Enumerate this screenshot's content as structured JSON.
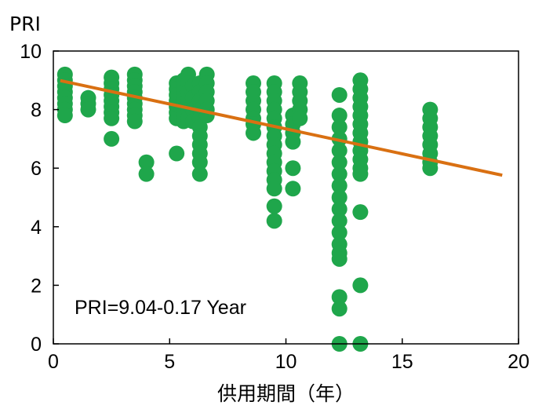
{
  "chart_data": {
    "type": "scatter",
    "title": "",
    "xlabel": "供用期間（年）",
    "ylabel": "PRI",
    "xlim": [
      0,
      20
    ],
    "ylim": [
      0,
      10
    ],
    "xticks": [
      "0",
      "5",
      "10",
      "15",
      "20"
    ],
    "yticks": [
      "0",
      "2",
      "4",
      "6",
      "8",
      "10"
    ],
    "grid": false,
    "legend": "none",
    "colors": {
      "points": "#1fa64b",
      "trendline": "#d97012"
    },
    "annotation": "PRI=9.04-0.17 Year",
    "trendline": {
      "intercept": 9.04,
      "slope": -0.17,
      "x_range": [
        0.3,
        19.3
      ]
    },
    "points": [
      {
        "x": 0.5,
        "y": 9.2
      },
      {
        "x": 0.5,
        "y": 9.0
      },
      {
        "x": 0.5,
        "y": 8.8
      },
      {
        "x": 0.5,
        "y": 8.6
      },
      {
        "x": 0.5,
        "y": 8.4
      },
      {
        "x": 0.5,
        "y": 8.2
      },
      {
        "x": 0.5,
        "y": 8.0
      },
      {
        "x": 0.5,
        "y": 7.8
      },
      {
        "x": 1.5,
        "y": 8.4
      },
      {
        "x": 1.5,
        "y": 8.2
      },
      {
        "x": 1.5,
        "y": 8.0
      },
      {
        "x": 2.5,
        "y": 9.1
      },
      {
        "x": 2.5,
        "y": 8.9
      },
      {
        "x": 2.5,
        "y": 8.7
      },
      {
        "x": 2.5,
        "y": 8.5
      },
      {
        "x": 2.5,
        "y": 8.3
      },
      {
        "x": 2.5,
        "y": 8.1
      },
      {
        "x": 2.5,
        "y": 7.9
      },
      {
        "x": 2.5,
        "y": 7.7
      },
      {
        "x": 2.5,
        "y": 7.0
      },
      {
        "x": 3.5,
        "y": 9.2
      },
      {
        "x": 3.5,
        "y": 9.0
      },
      {
        "x": 3.5,
        "y": 8.8
      },
      {
        "x": 3.5,
        "y": 8.6
      },
      {
        "x": 3.5,
        "y": 8.4
      },
      {
        "x": 3.5,
        "y": 8.2
      },
      {
        "x": 3.5,
        "y": 8.0
      },
      {
        "x": 3.5,
        "y": 7.8
      },
      {
        "x": 3.5,
        "y": 7.6
      },
      {
        "x": 4.0,
        "y": 6.2
      },
      {
        "x": 4.0,
        "y": 5.8
      },
      {
        "x": 5.3,
        "y": 8.9
      },
      {
        "x": 5.3,
        "y": 8.7
      },
      {
        "x": 5.3,
        "y": 8.5
      },
      {
        "x": 5.3,
        "y": 8.3
      },
      {
        "x": 5.3,
        "y": 8.1
      },
      {
        "x": 5.3,
        "y": 7.9
      },
      {
        "x": 5.3,
        "y": 7.7
      },
      {
        "x": 5.3,
        "y": 6.5
      },
      {
        "x": 5.6,
        "y": 9.0
      },
      {
        "x": 5.6,
        "y": 8.8
      },
      {
        "x": 5.6,
        "y": 8.6
      },
      {
        "x": 5.6,
        "y": 8.4
      },
      {
        "x": 5.6,
        "y": 8.2
      },
      {
        "x": 5.6,
        "y": 8.0
      },
      {
        "x": 5.6,
        "y": 7.8
      },
      {
        "x": 5.6,
        "y": 7.6
      },
      {
        "x": 5.8,
        "y": 9.2
      },
      {
        "x": 5.8,
        "y": 8.9
      },
      {
        "x": 5.8,
        "y": 8.6
      },
      {
        "x": 5.8,
        "y": 8.3
      },
      {
        "x": 5.8,
        "y": 8.0
      },
      {
        "x": 5.8,
        "y": 7.7
      },
      {
        "x": 6.0,
        "y": 8.8
      },
      {
        "x": 6.0,
        "y": 8.4
      },
      {
        "x": 6.0,
        "y": 8.0
      },
      {
        "x": 6.0,
        "y": 7.6
      },
      {
        "x": 6.3,
        "y": 8.9
      },
      {
        "x": 6.3,
        "y": 8.6
      },
      {
        "x": 6.3,
        "y": 8.3
      },
      {
        "x": 6.3,
        "y": 8.0
      },
      {
        "x": 6.3,
        "y": 7.7
      },
      {
        "x": 6.3,
        "y": 7.4
      },
      {
        "x": 6.3,
        "y": 7.1
      },
      {
        "x": 6.3,
        "y": 6.8
      },
      {
        "x": 6.3,
        "y": 6.5
      },
      {
        "x": 6.3,
        "y": 6.2
      },
      {
        "x": 6.3,
        "y": 5.8
      },
      {
        "x": 6.6,
        "y": 9.2
      },
      {
        "x": 6.6,
        "y": 8.9
      },
      {
        "x": 6.6,
        "y": 8.6
      },
      {
        "x": 6.6,
        "y": 8.3
      },
      {
        "x": 6.6,
        "y": 8.0
      },
      {
        "x": 6.6,
        "y": 7.8
      },
      {
        "x": 8.6,
        "y": 8.9
      },
      {
        "x": 8.6,
        "y": 8.6
      },
      {
        "x": 8.6,
        "y": 8.3
      },
      {
        "x": 8.6,
        "y": 8.0
      },
      {
        "x": 8.6,
        "y": 7.7
      },
      {
        "x": 8.6,
        "y": 7.5
      },
      {
        "x": 8.6,
        "y": 7.2
      },
      {
        "x": 9.5,
        "y": 8.9
      },
      {
        "x": 9.5,
        "y": 8.6
      },
      {
        "x": 9.5,
        "y": 8.3
      },
      {
        "x": 9.5,
        "y": 8.0
      },
      {
        "x": 9.5,
        "y": 7.7
      },
      {
        "x": 9.5,
        "y": 7.4
      },
      {
        "x": 9.5,
        "y": 7.1
      },
      {
        "x": 9.5,
        "y": 6.8
      },
      {
        "x": 9.5,
        "y": 6.5
      },
      {
        "x": 9.5,
        "y": 6.2
      },
      {
        "x": 9.5,
        "y": 5.9
      },
      {
        "x": 9.5,
        "y": 5.6
      },
      {
        "x": 9.5,
        "y": 5.3
      },
      {
        "x": 9.5,
        "y": 4.7
      },
      {
        "x": 9.5,
        "y": 4.2
      },
      {
        "x": 10.3,
        "y": 7.8
      },
      {
        "x": 10.3,
        "y": 7.5
      },
      {
        "x": 10.3,
        "y": 7.2
      },
      {
        "x": 10.3,
        "y": 6.9
      },
      {
        "x": 10.3,
        "y": 6.0
      },
      {
        "x": 10.3,
        "y": 5.3
      },
      {
        "x": 10.6,
        "y": 8.9
      },
      {
        "x": 10.6,
        "y": 8.6
      },
      {
        "x": 10.6,
        "y": 8.3
      },
      {
        "x": 10.6,
        "y": 8.0
      },
      {
        "x": 10.6,
        "y": 7.7
      },
      {
        "x": 12.3,
        "y": 8.5
      },
      {
        "x": 12.3,
        "y": 7.8
      },
      {
        "x": 12.3,
        "y": 7.4
      },
      {
        "x": 12.3,
        "y": 7.0
      },
      {
        "x": 12.3,
        "y": 6.6
      },
      {
        "x": 12.3,
        "y": 6.2
      },
      {
        "x": 12.3,
        "y": 5.8
      },
      {
        "x": 12.3,
        "y": 5.4
      },
      {
        "x": 12.3,
        "y": 5.0
      },
      {
        "x": 12.3,
        "y": 4.6
      },
      {
        "x": 12.3,
        "y": 4.2
      },
      {
        "x": 12.3,
        "y": 3.8
      },
      {
        "x": 12.3,
        "y": 3.4
      },
      {
        "x": 12.3,
        "y": 3.1
      },
      {
        "x": 12.3,
        "y": 2.9
      },
      {
        "x": 12.3,
        "y": 1.6
      },
      {
        "x": 12.3,
        "y": 1.2
      },
      {
        "x": 12.3,
        "y": 0.0
      },
      {
        "x": 13.2,
        "y": 9.0
      },
      {
        "x": 13.2,
        "y": 8.7
      },
      {
        "x": 13.2,
        "y": 8.4
      },
      {
        "x": 13.2,
        "y": 8.1
      },
      {
        "x": 13.2,
        "y": 7.8
      },
      {
        "x": 13.2,
        "y": 7.5
      },
      {
        "x": 13.2,
        "y": 7.2
      },
      {
        "x": 13.2,
        "y": 6.9
      },
      {
        "x": 13.2,
        "y": 6.6
      },
      {
        "x": 13.2,
        "y": 6.3
      },
      {
        "x": 13.2,
        "y": 6.0
      },
      {
        "x": 13.2,
        "y": 5.8
      },
      {
        "x": 13.2,
        "y": 4.5
      },
      {
        "x": 13.2,
        "y": 2.0
      },
      {
        "x": 13.2,
        "y": 0.0
      },
      {
        "x": 16.2,
        "y": 8.0
      },
      {
        "x": 16.2,
        "y": 7.7
      },
      {
        "x": 16.2,
        "y": 7.4
      },
      {
        "x": 16.2,
        "y": 7.1
      },
      {
        "x": 16.2,
        "y": 6.8
      },
      {
        "x": 16.2,
        "y": 6.5
      },
      {
        "x": 16.2,
        "y": 6.2
      },
      {
        "x": 16.2,
        "y": 6.0
      }
    ]
  }
}
